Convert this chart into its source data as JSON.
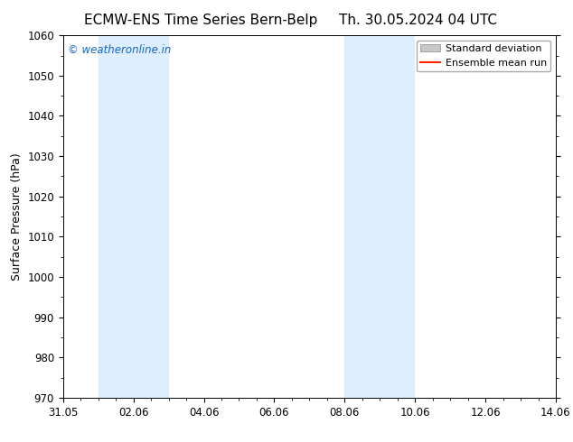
{
  "title_left": "ECMW-ENS Time Series Bern-Belp",
  "title_right": "Th. 30.05.2024 04 UTC",
  "ylabel": "Surface Pressure (hPa)",
  "ylim": [
    970,
    1060
  ],
  "yticks": [
    970,
    980,
    990,
    1000,
    1010,
    1020,
    1030,
    1040,
    1050,
    1060
  ],
  "x_start_day": 0,
  "x_end_day": 14,
  "xtick_labels": [
    "31.05",
    "02.06",
    "04.06",
    "06.06",
    "08.06",
    "10.06",
    "12.06",
    "14.06"
  ],
  "xtick_positions": [
    0,
    2,
    4,
    6,
    8,
    10,
    12,
    14
  ],
  "shaded_bands": [
    {
      "x0_day": 1,
      "x1_day": 3
    },
    {
      "x0_day": 8,
      "x1_day": 10
    }
  ],
  "band_color": "#ddeeff",
  "watermark_text": "© weatheronline.in",
  "watermark_color": "#1565c0",
  "legend_std_label": "Standard deviation",
  "legend_mean_label": "Ensemble mean run",
  "legend_std_color": "#c8c8c8",
  "legend_mean_color": "#ff2200",
  "bg_color": "#ffffff",
  "title_fontsize": 11,
  "axis_label_fontsize": 9,
  "tick_fontsize": 8.5,
  "watermark_fontsize": 8.5,
  "legend_fontsize": 8
}
